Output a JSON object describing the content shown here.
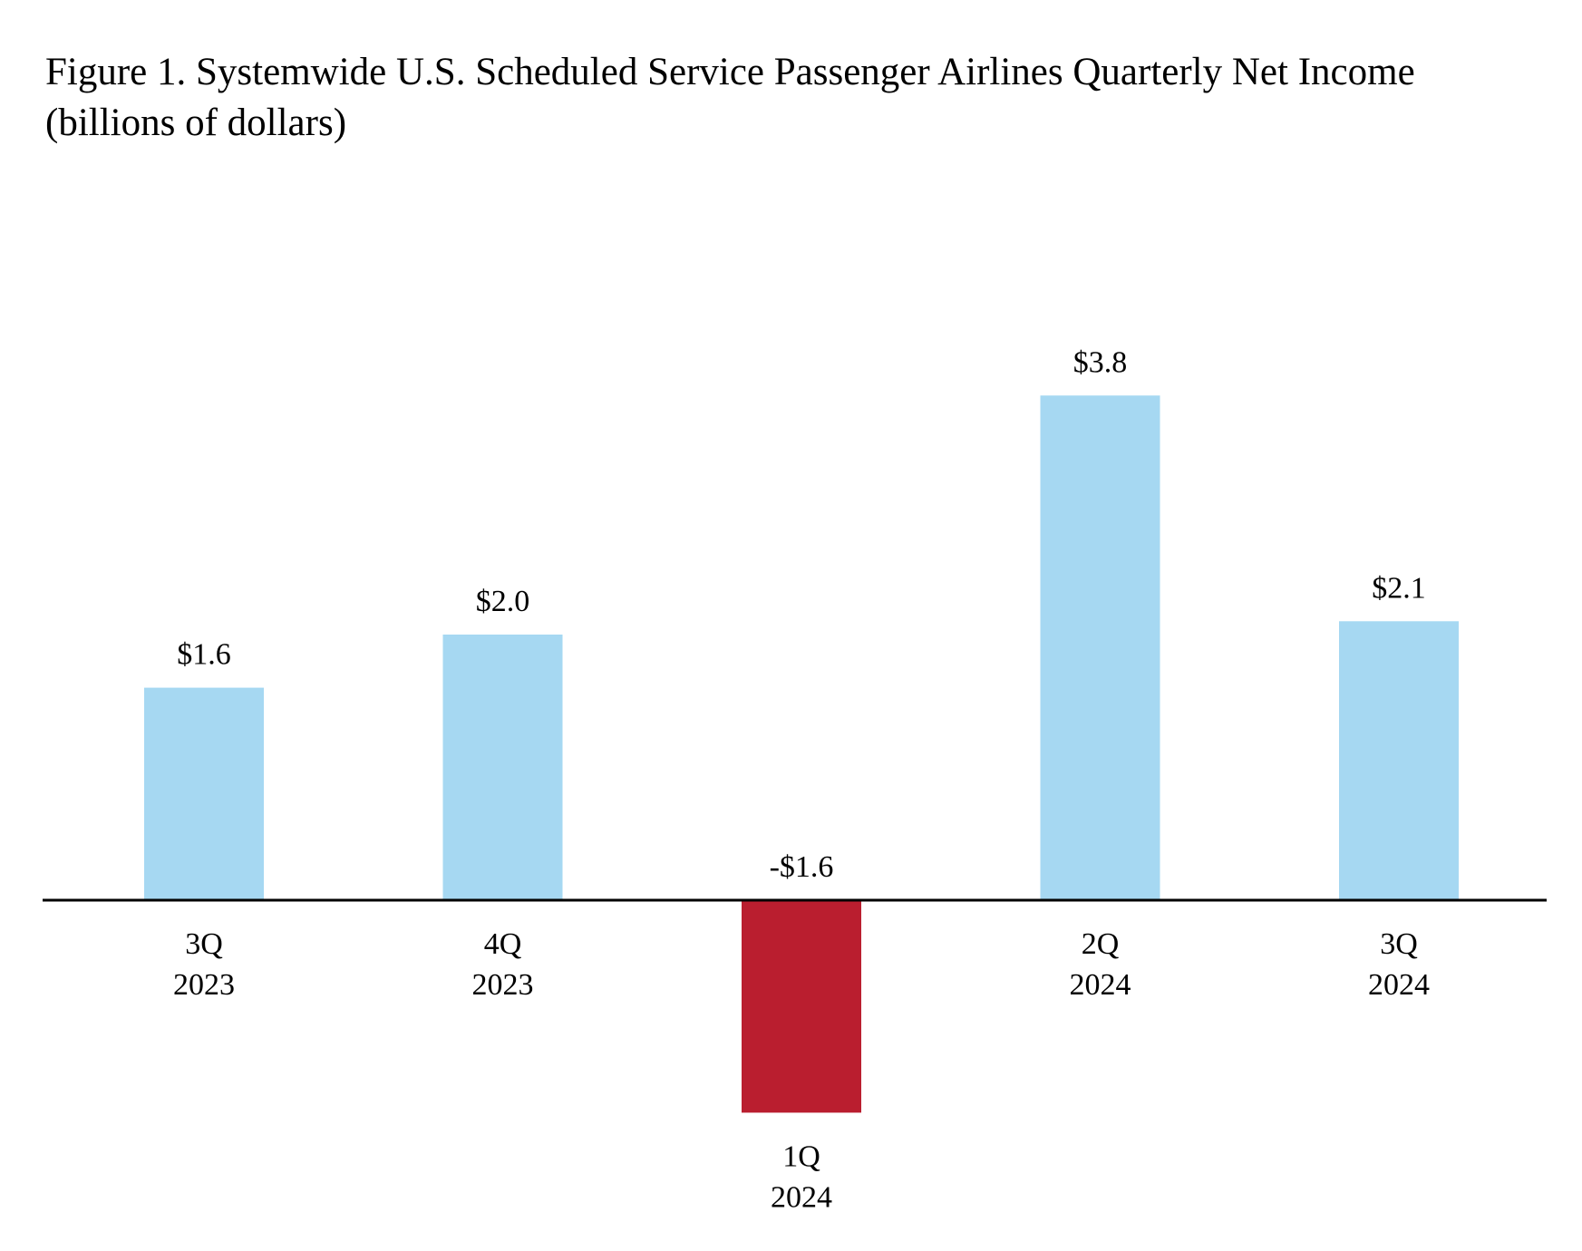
{
  "chart_data": {
    "type": "bar",
    "title": "Figure 1. Systemwide U.S. Scheduled Service Passenger Airlines Quarterly Net Income",
    "subtitle": "(billions of dollars)",
    "categories": [
      [
        "3Q",
        "2023"
      ],
      [
        "4Q",
        "2023"
      ],
      [
        "1Q",
        "2024"
      ],
      [
        "2Q",
        "2024"
      ],
      [
        "3Q",
        "2024"
      ]
    ],
    "values": [
      1.6,
      2.0,
      -1.6,
      3.8,
      2.1
    ],
    "data_labels": [
      "$1.6",
      "$2.0",
      "-$1.6",
      "$3.8",
      "$2.1"
    ],
    "ylim": [
      -1.6,
      3.8
    ],
    "grid": false,
    "legend": "none",
    "colors": {
      "positive": "#a6d8f2",
      "negative": "#ba1e2f",
      "axis": "#000000"
    }
  }
}
